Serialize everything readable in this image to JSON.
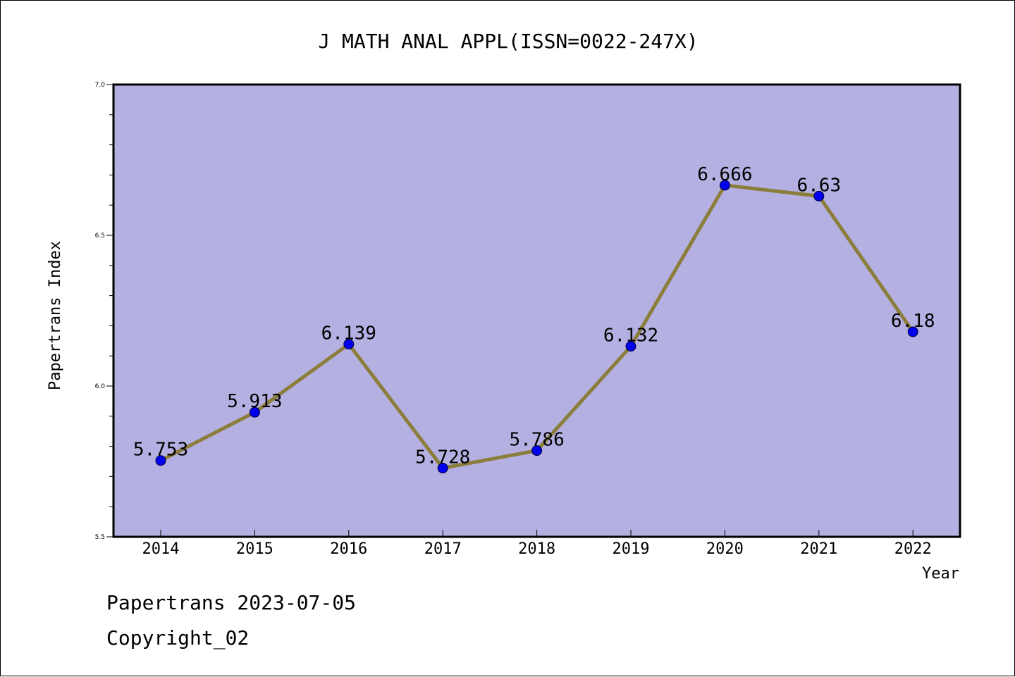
{
  "chart_data": {
    "type": "line",
    "title": "J MATH ANAL APPL(ISSN=0022-247X)",
    "xlabel": "Year",
    "ylabel": "Papertrans Index",
    "categories": [
      "2014",
      "2015",
      "2016",
      "2017",
      "2018",
      "2019",
      "2020",
      "2021",
      "2022"
    ],
    "values": [
      5.753,
      5.913,
      6.139,
      5.728,
      5.786,
      6.132,
      6.666,
      6.63,
      6.18
    ],
    "data_labels": [
      "5.753",
      "5.913",
      "6.139",
      "5.728",
      "5.786",
      "6.132",
      "6.666",
      "6.63",
      "6.18"
    ],
    "ylim": [
      5.5,
      7.0
    ],
    "yticks": [
      "5.5",
      "6.0",
      "6.5",
      "7.0"
    ],
    "grid": false,
    "colors": {
      "plot_background": "#b5b0e2",
      "line": "#8b7d3a",
      "marker": "#0000ee"
    }
  },
  "footer": {
    "line1": "Papertrans 2023-07-05",
    "line2": "Copyright_02"
  }
}
